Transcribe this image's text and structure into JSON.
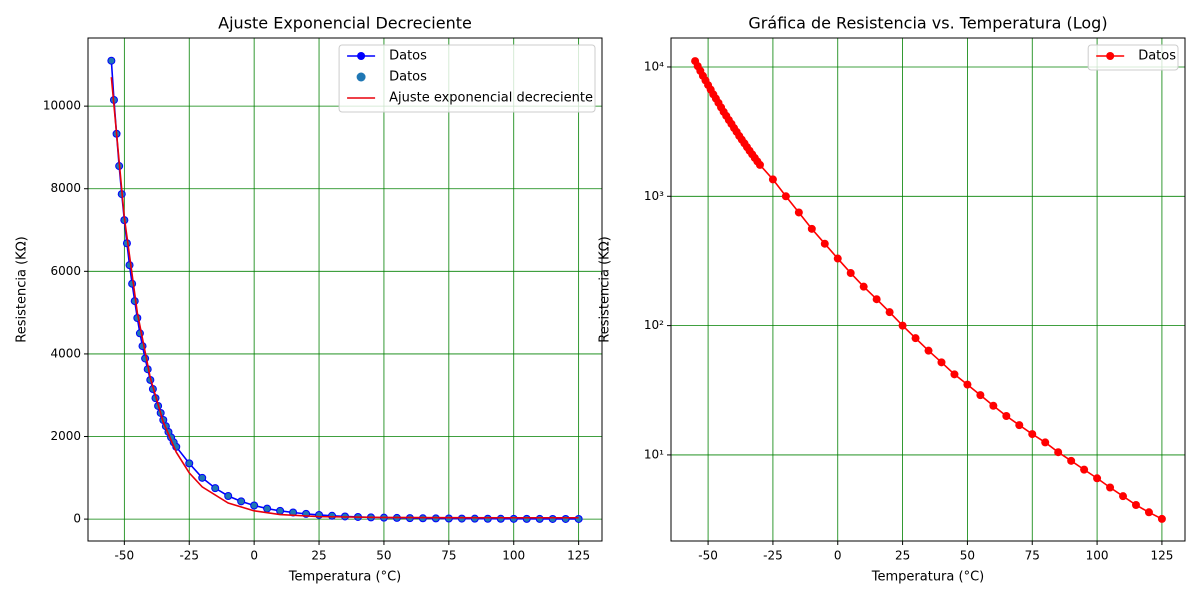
{
  "chart_data": [
    {
      "type": "line",
      "title": "Ajuste Exponencial Decreciente",
      "xlabel": "Temperatura (°C)",
      "ylabel": "Resistencia (KΩ)",
      "xlim": [
        -64,
        134
      ],
      "xticks": [
        -50,
        -25,
        0,
        25,
        50,
        75,
        100,
        125
      ],
      "ylim": [
        -530,
        11650
      ],
      "yticks": [
        0,
        2000,
        4000,
        6000,
        8000,
        10000
      ],
      "grid": true,
      "grid_color": "green",
      "legend": "upper right",
      "series": [
        {
          "name": "Datos",
          "type": "line",
          "marker": true,
          "color": "#0000ff",
          "x": [
            -55,
            -54,
            -53,
            -52,
            -51,
            -50,
            -49,
            -48,
            -47,
            -46,
            -45,
            -44,
            -43,
            -42,
            -41,
            -40,
            -39,
            -38,
            -37,
            -36,
            -35,
            -34,
            -33,
            -32,
            -31,
            -30,
            -25,
            -20,
            -15,
            -10,
            -5,
            0,
            5,
            10,
            15,
            20,
            25,
            30,
            35,
            40,
            45,
            50,
            55,
            60,
            65,
            70,
            75,
            80,
            85,
            90,
            95,
            100,
            105,
            110,
            115,
            120,
            125
          ],
          "values": [
            11100,
            10150,
            9330,
            8550,
            7870,
            7240,
            6680,
            6150,
            5700,
            5280,
            4870,
            4500,
            4190,
            3890,
            3630,
            3370,
            3150,
            2930,
            2740,
            2570,
            2400,
            2250,
            2110,
            1980,
            1860,
            1750,
            1350,
            1000,
            750,
            560,
            430,
            330,
            255,
            200,
            160,
            127,
            100,
            80,
            64,
            52,
            42,
            35,
            29,
            24,
            20,
            17,
            14.5,
            12.5,
            10.5,
            9,
            7.7,
            6.6,
            5.6,
            4.8,
            4.1,
            3.6,
            3.2
          ]
        },
        {
          "name": "Datos",
          "type": "scatter",
          "marker": true,
          "color": "#1f77b4",
          "x": [
            -55,
            -54,
            -53,
            -52,
            -51,
            -50,
            -49,
            -48,
            -47,
            -46,
            -45,
            -44,
            -43,
            -42,
            -41,
            -40,
            -39,
            -38,
            -37,
            -36,
            -35,
            -34,
            -33,
            -32,
            -31,
            -30,
            -25,
            -20,
            -15,
            -10,
            -5,
            0,
            5,
            10,
            15,
            20,
            25,
            30,
            35,
            40,
            45,
            50,
            55,
            60,
            65,
            70,
            75,
            80,
            85,
            90,
            95,
            100,
            105,
            110,
            115,
            120,
            125
          ],
          "values": [
            11100,
            10150,
            9330,
            8550,
            7870,
            7240,
            6680,
            6150,
            5700,
            5280,
            4870,
            4500,
            4190,
            3890,
            3630,
            3370,
            3150,
            2930,
            2740,
            2570,
            2400,
            2250,
            2110,
            1980,
            1860,
            1750,
            1350,
            1000,
            750,
            560,
            430,
            330,
            255,
            200,
            160,
            127,
            100,
            80,
            64,
            52,
            42,
            35,
            29,
            24,
            20,
            17,
            14.5,
            12.5,
            10.5,
            9,
            7.7,
            6.6,
            5.6,
            4.8,
            4.1,
            3.6,
            3.2
          ]
        },
        {
          "name": "Ajuste exponencial decreciente",
          "type": "line",
          "marker": false,
          "color": "#e8000b",
          "x": [
            -55,
            -50,
            -45,
            -40,
            -35,
            -30,
            -25,
            -20,
            -10,
            0,
            10,
            25,
            50,
            75,
            100,
            125
          ],
          "values": [
            10700,
            7300,
            5000,
            3420,
            2350,
            1620,
            1120,
            780,
            390,
            200,
            110,
            60,
            40,
            35,
            33,
            33
          ]
        }
      ]
    },
    {
      "type": "line",
      "title": "Gráfica de Resistencia vs. Temperatura (Log)",
      "xlabel": "Temperatura (°C)",
      "ylabel": "Resistencia (KΩ)",
      "xlim": [
        -64.3,
        133.9
      ],
      "xticks": [
        -50,
        -25,
        0,
        25,
        50,
        75,
        100,
        125
      ],
      "yscale": "log",
      "ylim": [
        2.16,
        16750
      ],
      "yticks": [
        {
          "value": 10,
          "label": "10¹"
        },
        {
          "value": 100,
          "label": "10²"
        },
        {
          "value": 1000,
          "label": "10³"
        },
        {
          "value": 10000,
          "label": "10⁴"
        }
      ],
      "grid": true,
      "grid_color": "green",
      "legend": "upper right",
      "series": [
        {
          "name": "Datos",
          "type": "line",
          "marker": true,
          "color": "#ff0000",
          "x": [
            -55,
            -54,
            -53,
            -52,
            -51,
            -50,
            -49,
            -48,
            -47,
            -46,
            -45,
            -44,
            -43,
            -42,
            -41,
            -40,
            -39,
            -38,
            -37,
            -36,
            -35,
            -34,
            -33,
            -32,
            -31,
            -30,
            -25,
            -20,
            -15,
            -10,
            -5,
            0,
            5,
            10,
            15,
            20,
            25,
            30,
            35,
            40,
            45,
            50,
            55,
            60,
            65,
            70,
            75,
            80,
            85,
            90,
            95,
            100,
            105,
            110,
            115,
            120,
            125
          ],
          "values": [
            11100,
            10150,
            9330,
            8550,
            7870,
            7240,
            6680,
            6150,
            5700,
            5280,
            4870,
            4500,
            4190,
            3890,
            3630,
            3370,
            3150,
            2930,
            2740,
            2570,
            2400,
            2250,
            2110,
            1980,
            1860,
            1750,
            1350,
            1000,
            750,
            560,
            430,
            330,
            255,
            200,
            160,
            127,
            100,
            80,
            64,
            52,
            42,
            35,
            29,
            24,
            20,
            17,
            14.5,
            12.5,
            10.5,
            9,
            7.7,
            6.6,
            5.6,
            4.8,
            4.1,
            3.6,
            3.2
          ]
        }
      ]
    }
  ]
}
